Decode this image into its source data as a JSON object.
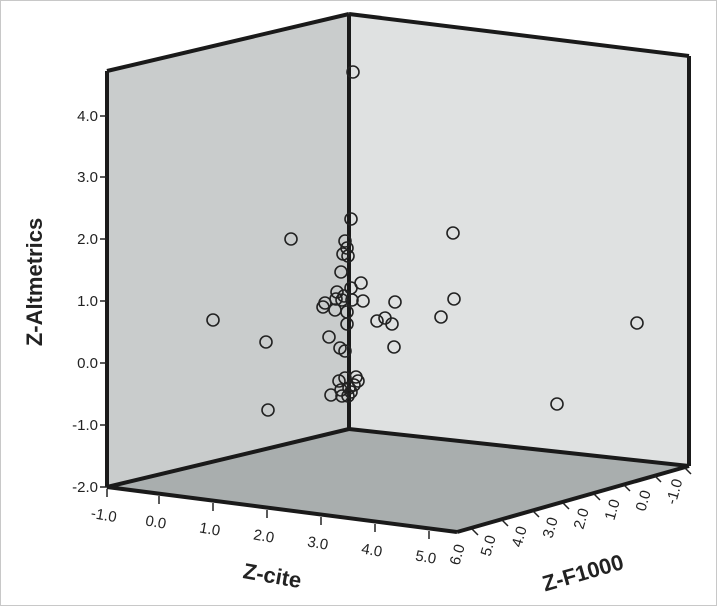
{
  "chart_data": {
    "type": "scatter",
    "subtype": "3d-scatter",
    "xlabel": "Z-cite",
    "ylabel": "Z-Altmetrics",
    "zlabel": "Z-F1000",
    "x_ticks": [
      "-1.0",
      "0.0",
      "1.0",
      "2.0",
      "3.0",
      "4.0",
      "5.0"
    ],
    "y_ticks": [
      "-2.0",
      "-1.0",
      "0.0",
      "1.0",
      "2.0",
      "3.0",
      "4.0"
    ],
    "z_ticks": [
      "6.0",
      "5.0",
      "4.0",
      "3.0",
      "2.0",
      "1.0",
      "0.0",
      "-1.0"
    ],
    "xlim": [
      -1.0,
      5.5
    ],
    "ylim": [
      -2.0,
      5.0
    ],
    "zlim": [
      -1.2,
      6.0
    ],
    "grid": false,
    "colors": {
      "left_wall": "#c9cccc",
      "right_wall": "#dfe1e1",
      "floor": "#a9aeae",
      "edge": "#1a1a1a",
      "marker": "#222222"
    },
    "screen_points": [
      [
        353,
        72
      ],
      [
        351,
        219
      ],
      [
        453,
        233
      ],
      [
        291,
        239
      ],
      [
        345,
        241
      ],
      [
        347,
        248
      ],
      [
        343,
        254
      ],
      [
        348,
        256
      ],
      [
        341,
        272
      ],
      [
        361,
        283
      ],
      [
        351,
        288
      ],
      [
        337,
        292
      ],
      [
        344,
        296
      ],
      [
        336,
        299
      ],
      [
        342,
        300
      ],
      [
        352,
        300
      ],
      [
        454,
        299
      ],
      [
        395,
        302
      ],
      [
        363,
        301
      ],
      [
        325,
        303
      ],
      [
        323,
        307
      ],
      [
        335,
        310
      ],
      [
        347,
        312
      ],
      [
        213,
        320
      ],
      [
        441,
        317
      ],
      [
        385,
        318
      ],
      [
        377,
        321
      ],
      [
        392,
        324
      ],
      [
        637,
        323
      ],
      [
        347,
        324
      ],
      [
        329,
        337
      ],
      [
        266,
        342
      ],
      [
        394,
        347
      ],
      [
        340,
        348
      ],
      [
        345,
        351
      ],
      [
        345,
        378
      ],
      [
        356,
        377
      ],
      [
        339,
        381
      ],
      [
        358,
        381
      ],
      [
        354,
        385
      ],
      [
        349,
        388
      ],
      [
        341,
        390
      ],
      [
        351,
        392
      ],
      [
        331,
        395
      ],
      [
        342,
        396
      ],
      [
        348,
        396
      ],
      [
        557,
        404
      ],
      [
        268,
        410
      ]
    ]
  }
}
